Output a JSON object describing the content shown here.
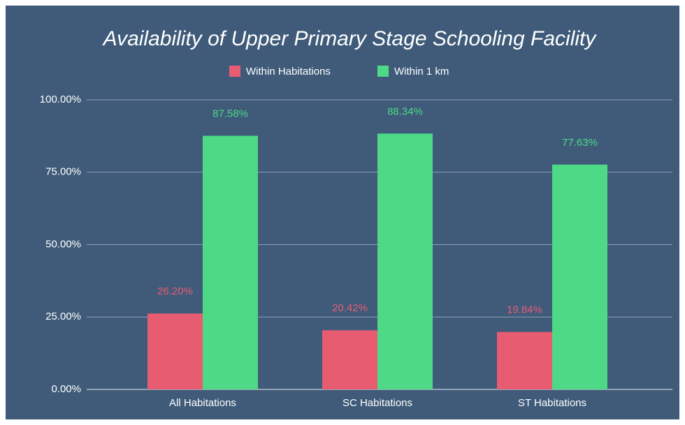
{
  "chart_data": {
    "type": "bar",
    "title": "Availability of Upper Primary Stage Schooling Facility",
    "categories": [
      "All Habitations",
      "SC Habitations",
      "ST Habitations"
    ],
    "series": [
      {
        "name": "Within Habitations",
        "color": "#e85c72",
        "values": [
          26.2,
          20.42,
          19.84
        ],
        "value_labels": [
          "26.20%",
          "20.42%",
          "19.84%"
        ]
      },
      {
        "name": "Within 1 km",
        "color": "#4dd985",
        "values": [
          87.58,
          88.34,
          77.63
        ],
        "value_labels": [
          "87.58%",
          "88.34%",
          "77.63%"
        ]
      }
    ],
    "ylim": [
      0,
      100
    ],
    "yticks": [
      {
        "value": 0,
        "label": "0.00%"
      },
      {
        "value": 25,
        "label": "25.00%"
      },
      {
        "value": 50,
        "label": "50.00%"
      },
      {
        "value": 75,
        "label": "75.00%"
      },
      {
        "value": 100,
        "label": "100.00%"
      }
    ],
    "grid": true,
    "legend": "top"
  }
}
